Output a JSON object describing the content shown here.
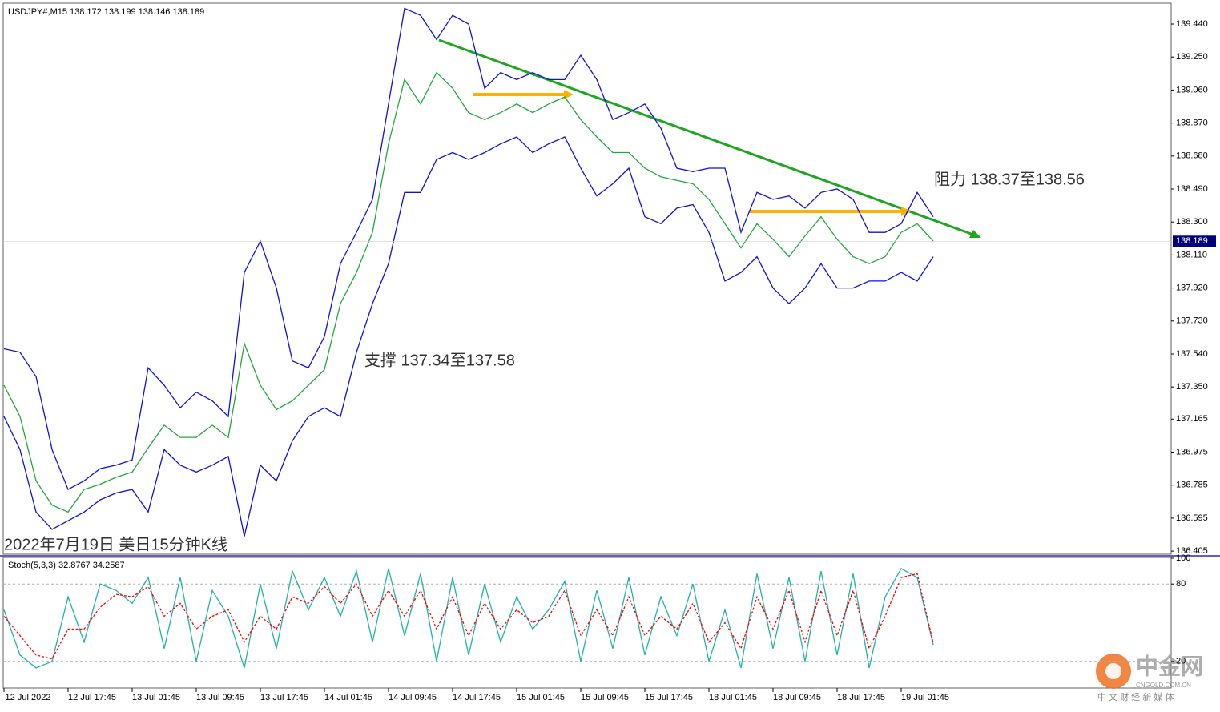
{
  "chart_data": [
    {
      "type": "line",
      "title": "USDJPY#,M15  138.172 138.199 138.146 138.189",
      "annotations": [
        "阻力 138.37至138.56",
        "支撑 137.34至137.58",
        "2022年7月19日 美日15分钟K线"
      ],
      "xlim": [
        0,
        72.85
      ],
      "ylim": [
        136.387,
        139.56
      ],
      "yticks": [
        {
          "value": 139.44,
          "label": "139.440"
        },
        {
          "value": 139.25,
          "label": "139.250"
        },
        {
          "value": 139.06,
          "label": "139.060"
        },
        {
          "value": 138.87,
          "label": "138.870"
        },
        {
          "value": 138.68,
          "label": "138.680"
        },
        {
          "value": 138.49,
          "label": "138.490"
        },
        {
          "value": 138.3,
          "label": "138.300"
        },
        {
          "value": 138.11,
          "label": "138.110"
        },
        {
          "value": 137.92,
          "label": "137.920"
        },
        {
          "value": 137.73,
          "label": "137.730"
        },
        {
          "value": 137.54,
          "label": "137.540"
        },
        {
          "value": 137.35,
          "label": "137.350"
        },
        137.165,
        136.975,
        136.785,
        136.595,
        136.405
      ],
      "current_price": 138.189,
      "series": [
        {
          "color": "#22a83a",
          "values": [
            137.36,
            137.18,
            136.81,
            136.67,
            136.63,
            136.76,
            136.79,
            136.83,
            136.86,
            137.0,
            137.13,
            137.06,
            137.06,
            137.13,
            137.06,
            137.6,
            137.36,
            137.22,
            137.27,
            137.36,
            137.45,
            137.83,
            138.01,
            138.24,
            138.75,
            139.12,
            138.98,
            139.16,
            139.07,
            138.93,
            138.89,
            138.93,
            138.98,
            138.93,
            138.98,
            139.02,
            138.89,
            138.79,
            138.7,
            138.7,
            138.61,
            138.56,
            138.54,
            138.52,
            138.43,
            138.29,
            138.15,
            138.29,
            138.2,
            138.1,
            138.22,
            138.33,
            138.2,
            138.1,
            138.06,
            138.1,
            138.24,
            138.29,
            138.19
          ]
        },
        {
          "color": "#1010e0",
          "values": [
            137.57,
            137.55,
            137.41,
            136.99,
            136.76,
            136.81,
            136.88,
            136.9,
            136.93,
            137.46,
            137.36,
            137.23,
            137.32,
            137.27,
            137.18,
            138.01,
            138.19,
            137.92,
            137.5,
            137.46,
            137.64,
            138.06,
            138.24,
            138.43,
            138.98,
            139.53,
            139.49,
            139.35,
            139.49,
            139.44,
            139.07,
            139.16,
            139.12,
            139.16,
            139.12,
            139.12,
            139.26,
            139.12,
            138.89,
            138.93,
            138.98,
            138.84,
            138.61,
            138.59,
            138.61,
            138.61,
            138.24,
            138.47,
            138.43,
            138.45,
            138.38,
            138.47,
            138.49,
            138.43,
            138.24,
            138.24,
            138.29,
            138.47,
            138.33
          ]
        },
        {
          "color": "#1010e0",
          "values": [
            137.18,
            136.99,
            136.63,
            136.53,
            136.58,
            136.63,
            136.7,
            136.74,
            136.76,
            136.63,
            136.99,
            136.9,
            136.86,
            136.9,
            136.95,
            136.49,
            136.9,
            136.81,
            137.04,
            137.18,
            137.23,
            137.18,
            137.55,
            137.83,
            138.06,
            138.47,
            138.47,
            138.66,
            138.7,
            138.66,
            138.7,
            138.75,
            138.79,
            138.7,
            138.75,
            138.79,
            138.61,
            138.45,
            138.52,
            138.61,
            138.33,
            138.29,
            138.38,
            138.4,
            138.24,
            137.96,
            138.01,
            138.1,
            137.92,
            137.83,
            137.92,
            138.06,
            137.92,
            137.92,
            137.96,
            137.96,
            138.01,
            137.96,
            138.1
          ]
        }
      ]
    },
    {
      "type": "line",
      "title": "Stoch(5,3,3) 32.8767 34.2587",
      "xlim": [
        0,
        72.85
      ],
      "ylim": [
        0,
        100
      ],
      "yticks": [
        100,
        80,
        20
      ],
      "xticks": [
        {
          "value": 1.5,
          "label": "12 Jul 2022"
        },
        {
          "value": 5.5,
          "label": "12 Jul 17:45"
        },
        {
          "value": 9.5,
          "label": "13 Jul 01:45"
        },
        {
          "value": 13.5,
          "label": "13 Jul 09:45"
        },
        {
          "value": 17.5,
          "label": "13 Jul 17:45"
        },
        {
          "value": 21.5,
          "label": "14 Jul 01:45"
        },
        {
          "value": 25.5,
          "label": "14 Jul 09:45"
        },
        {
          "value": 29.5,
          "label": "14 Jul 17:45"
        },
        {
          "value": 33.5,
          "label": "15 Jul 01:45"
        },
        {
          "value": 37.5,
          "label": "15 Jul 09:45"
        },
        {
          "value": 41.5,
          "label": "15 Jul 17:45"
        },
        {
          "value": 45.5,
          "label": "18 Jul 01:45"
        },
        {
          "value": 49.5,
          "label": "18 Jul 09:45"
        },
        {
          "value": 53.5,
          "label": "18 Jul 17:45"
        },
        {
          "value": 57.5,
          "label": "19 Jul 01:45"
        }
      ],
      "series": [
        {
          "color": "#20b2aa",
          "linestyle": "solid",
          "values": [
            60,
            25,
            15,
            20,
            70,
            35,
            80,
            75,
            65,
            85,
            30,
            85,
            20,
            75,
            55,
            15,
            80,
            30,
            90,
            60,
            85,
            55,
            90,
            35,
            92,
            40,
            88,
            20,
            85,
            25,
            80,
            35,
            70,
            45,
            60,
            82,
            20,
            75,
            30,
            85,
            25,
            70,
            40,
            80,
            20,
            60,
            15,
            88,
            30,
            85,
            20,
            90,
            25,
            88,
            15,
            70,
            92,
            85,
            32.88
          ]
        },
        {
          "color": "#ff0000",
          "linestyle": "dashed",
          "values": [
            55,
            40,
            25,
            22,
            45,
            45,
            62,
            72,
            70,
            78,
            55,
            65,
            45,
            55,
            60,
            35,
            55,
            45,
            70,
            65,
            78,
            65,
            80,
            55,
            75,
            55,
            75,
            45,
            70,
            40,
            65,
            45,
            60,
            50,
            55,
            75,
            40,
            60,
            40,
            70,
            40,
            55,
            45,
            65,
            35,
            50,
            30,
            70,
            45,
            75,
            35,
            75,
            40,
            75,
            30,
            55,
            85,
            88,
            34.26
          ]
        }
      ]
    }
  ],
  "watermark": {
    "name": "中金网",
    "site": "CNGOLD.COM.CN",
    "slogan": "中 文 财 经 新 媒 体"
  }
}
